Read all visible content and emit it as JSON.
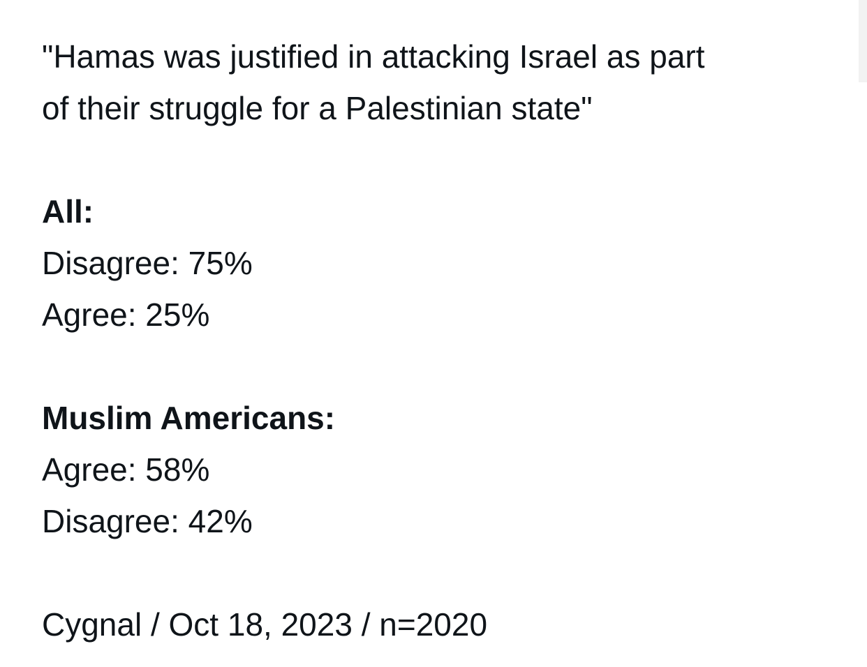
{
  "post": {
    "quote_line_1": "\"Hamas was justified in attacking Israel as part",
    "quote_line_2": "of their struggle for a Palestinian state\"",
    "all_heading": "All:",
    "all_rows": [
      "Disagree: 75%",
      "Agree: 25%"
    ],
    "muslim_heading": "Muslim Americans:",
    "muslim_rows": [
      "Agree: 58%",
      "Disagree: 42%"
    ],
    "source": "Cygnal / Oct 18, 2023 / n=2020"
  }
}
